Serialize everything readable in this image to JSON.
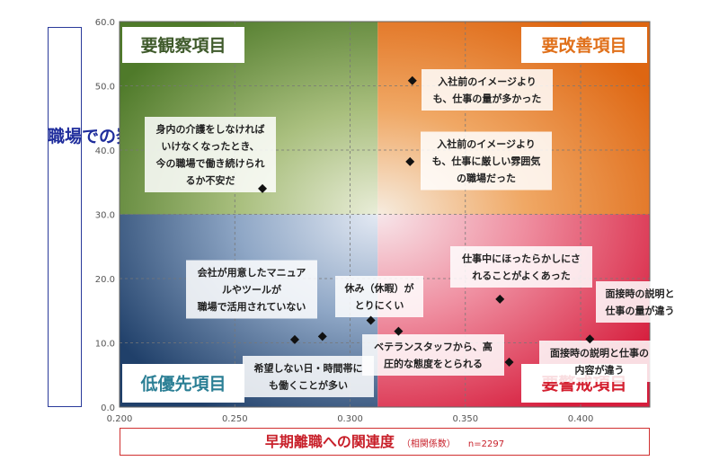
{
  "chart_data": {
    "type": "scatter",
    "title": "",
    "xlabel": "早期離職への関連度",
    "xlabel_sub": "（相関係数）",
    "sample_note": "n=2297",
    "ylabel": "職場での発生率",
    "xlim": [
      0.2,
      0.43
    ],
    "ylim": [
      0.0,
      60.0
    ],
    "x_ticks": [
      "0.200",
      "0.250",
      "0.300",
      "0.350",
      "0.400"
    ],
    "y_ticks": [
      "0.0",
      "10.0",
      "20.0",
      "30.0",
      "40.0",
      "50.0",
      "60.0"
    ],
    "grid": true,
    "quadrant_divider": {
      "x": 0.312,
      "y": 30.0
    },
    "quadrants": [
      {
        "label": "要観察項目",
        "color": "#3f5a2b",
        "position": "top-left"
      },
      {
        "label": "要改善項目",
        "color": "#e0701a",
        "position": "top-right"
      },
      {
        "label": "低優先項目",
        "color": "#2b7f95",
        "position": "bottom-left"
      },
      {
        "label": "要警戒項目",
        "color": "#d42030",
        "position": "bottom-right"
      }
    ],
    "points": [
      {
        "x": 0.327,
        "y": 50.8,
        "label": "入社前のイメージより\nも、仕事の量が多かった"
      },
      {
        "x": 0.326,
        "y": 38.2,
        "label": "入社前のイメージより\nも、仕事に厳しい雰囲気\nの職場だった"
      },
      {
        "x": 0.262,
        "y": 34.0,
        "label": "身内の介護をしなければ\nいけなくなったとき、\n今の職場で働き続けられ\nるか不安だ"
      },
      {
        "x": 0.365,
        "y": 16.8,
        "label": "仕事中にほったらかしにさ\nれることがよくあった"
      },
      {
        "x": 0.309,
        "y": 13.5,
        "label": "休み（休暇）が\nとりにくい"
      },
      {
        "x": 0.321,
        "y": 11.8,
        "label": "ベテランスタッフから、高\n圧的な態度をとられる"
      },
      {
        "x": 0.288,
        "y": 11.0,
        "label": "希望しない日・時間帯に\nも働くことが多い"
      },
      {
        "x": 0.276,
        "y": 10.5,
        "label": "会社が用意したマニュア\nルやツールが\n職場で活用されていない"
      },
      {
        "x": 0.404,
        "y": 10.6,
        "label": "面接時の説明と\n仕事の量が違う"
      },
      {
        "x": 0.369,
        "y": 7.0,
        "label": "面接時の説明と仕事の\n内容が違う"
      }
    ]
  }
}
